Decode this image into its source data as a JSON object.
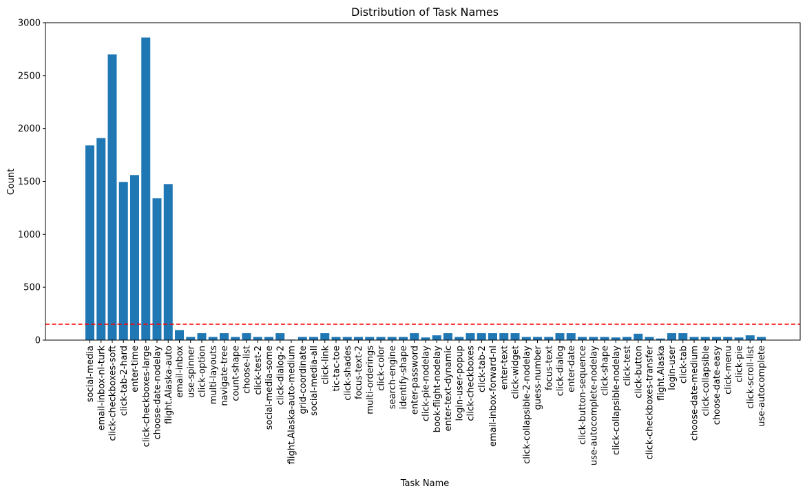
{
  "chart_data": {
    "type": "bar",
    "title": "Distribution of Task Names",
    "xlabel": "Task Name",
    "ylabel": "Count",
    "ylim": [
      0,
      3000
    ],
    "yticks": [
      0,
      500,
      1000,
      1500,
      2000,
      2500,
      3000
    ],
    "bar_color": "#1f77b4",
    "threshold": {
      "value": 150,
      "color": "#ff0000",
      "style": "dashed"
    },
    "grid": false,
    "categories": [
      "social-media",
      "email-inbox-nl-turk",
      "click-checkboxes-soft",
      "click-tab-2-hard",
      "enter-time",
      "click-checkboxes-large",
      "choose-date-nodelay",
      "flight.Alaska-auto",
      "email-inbox",
      "use-spinner",
      "click-option",
      "multi-layouts",
      "navigate-tree",
      "count-shape",
      "choose-list",
      "click-test-2",
      "social-media-some",
      "click-dialog-2",
      "flight.Alaska-auto-medium",
      "grid-coordinate",
      "social-media-all",
      "click-link",
      "tic-tac-toe",
      "click-shades",
      "focus-text-2",
      "multi-orderings",
      "click-color",
      "search-engine",
      "identify-shape",
      "enter-password",
      "click-pie-nodelay",
      "book-flight-nodelay",
      "enter-text-dynamic",
      "login-user-popup",
      "click-checkboxes",
      "click-tab-2",
      "email-inbox-forward-nl",
      "enter-text",
      "click-widget",
      "click-collapsible-2-nodelay",
      "guess-number",
      "focus-text",
      "click-dialog",
      "enter-date",
      "click-button-sequence",
      "use-autocomplete-nodelay",
      "click-shape",
      "click-collapsible-nodelay",
      "click-test",
      "click-button",
      "click-checkboxes-transfer",
      "flight.Alaska",
      "login-user",
      "click-tab",
      "choose-date-medium",
      "click-collapsible",
      "choose-date-easy",
      "click-menu",
      "click-pie",
      "click-scroll-list",
      "use-autocomplete"
    ],
    "values": [
      1840,
      1910,
      2700,
      1495,
      1560,
      2860,
      1340,
      1475,
      95,
      30,
      65,
      30,
      65,
      30,
      65,
      30,
      30,
      65,
      5,
      30,
      30,
      65,
      30,
      30,
      30,
      30,
      30,
      30,
      30,
      65,
      25,
      45,
      65,
      30,
      65,
      65,
      65,
      65,
      65,
      30,
      30,
      30,
      65,
      65,
      30,
      30,
      30,
      25,
      30,
      60,
      30,
      15,
      65,
      65,
      30,
      30,
      30,
      30,
      25,
      45,
      30
    ]
  }
}
